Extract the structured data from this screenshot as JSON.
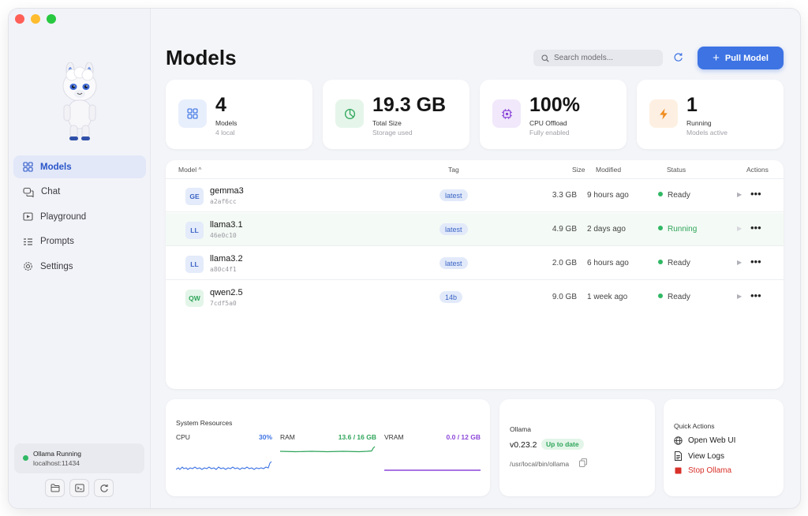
{
  "window": {
    "traffic_colors": [
      "#ff5f57",
      "#febc2e",
      "#28c840"
    ]
  },
  "sidebar": {
    "items": [
      {
        "label": "Models",
        "icon": "grid-icon",
        "active": true
      },
      {
        "label": "Chat",
        "icon": "chat-bubbles-icon"
      },
      {
        "label": "Playground",
        "icon": "play-box-icon"
      },
      {
        "label": "Prompts",
        "icon": "prompt-list-icon"
      },
      {
        "label": "Settings",
        "icon": "gear-icon"
      }
    ],
    "status": {
      "label": "Ollama Running",
      "host": "localhost:11434"
    },
    "footer_buttons": [
      "folder-icon",
      "terminal-icon",
      "restart-icon"
    ]
  },
  "header": {
    "title": "Models",
    "search_placeholder": "Search models...",
    "pull_label": "Pull Model"
  },
  "stats": [
    {
      "value": "4",
      "label": "Models",
      "sub": "4 local",
      "icon": "grid-icon",
      "color": "#3d73e3"
    },
    {
      "value": "19.3 GB",
      "label": "Total Size",
      "sub": "Storage used",
      "icon": "pie-icon",
      "color": "#2ea55a"
    },
    {
      "value": "100%",
      "label": "CPU Offload",
      "sub": "Fully enabled",
      "icon": "chip-icon",
      "color": "#8b46d9"
    },
    {
      "value": "1",
      "label": "Running",
      "sub": "Models active",
      "icon": "bolt-icon",
      "color": "#f08c1e"
    }
  ],
  "table": {
    "headers": {
      "model": "Model",
      "tag": "Tag",
      "size": "Size",
      "modified": "Modified",
      "status": "Status",
      "actions": "Actions"
    },
    "sort_indicator": "^",
    "rows": [
      {
        "abbr": "GE",
        "name": "gemma3",
        "hash": "a2af6cc",
        "tag": "latest",
        "size": "3.3 GB",
        "modified": "9 hours ago",
        "status": "Ready"
      },
      {
        "abbr": "LL",
        "name": "llama3.1",
        "hash": "46e0c10",
        "tag": "latest",
        "size": "4.9 GB",
        "modified": "2 days ago",
        "status": "Running"
      },
      {
        "abbr": "LL",
        "name": "llama3.2",
        "hash": "a80c4f1",
        "tag": "latest",
        "size": "2.0 GB",
        "modified": "6 hours ago",
        "status": "Ready"
      },
      {
        "abbr": "QW",
        "name": "qwen2.5",
        "hash": "7cdf5a0",
        "tag": "14b",
        "size": "9.0 GB",
        "modified": "1 week ago",
        "status": "Ready"
      }
    ]
  },
  "resources": {
    "title": "System Resources",
    "cpu": {
      "label": "CPU",
      "value": "30%",
      "color": "#3d73e3"
    },
    "ram": {
      "label": "RAM",
      "value": "13.6 / 16 GB",
      "color": "#2ea55a"
    },
    "vram": {
      "label": "VRAM",
      "value": "0.0 / 12 GB",
      "color": "#8b46d9"
    }
  },
  "ollama": {
    "title": "Ollama",
    "version": "v0.23.2",
    "badge": "Up to date",
    "path": "/usr/local/bin/ollama"
  },
  "quick_actions": {
    "title": "Quick Actions",
    "items": [
      {
        "label": "Open Web UI",
        "icon": "globe-icon"
      },
      {
        "label": "View Logs",
        "icon": "document-icon"
      },
      {
        "label": "Stop Ollama",
        "icon": "stop-icon",
        "danger": true
      }
    ]
  }
}
